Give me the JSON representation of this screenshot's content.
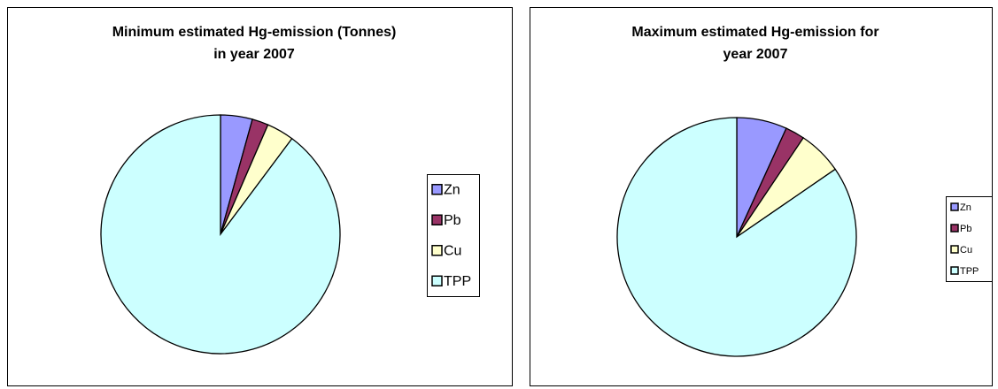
{
  "chart_data": [
    {
      "type": "pie",
      "title": [
        "Minimum estimated Hg-emission (Tonnes)",
        "in year 2007"
      ],
      "categories": [
        "Zn",
        "Pb",
        "Cu",
        "TPP"
      ],
      "values": [
        4.3,
        2.2,
        3.7,
        89.8
      ],
      "colors": [
        "#9999ff",
        "#993366",
        "#ffffcc",
        "#ccffff"
      ],
      "legend": "right"
    },
    {
      "type": "pie",
      "title": [
        "Maximum estimated Hg-emission for",
        "year 2007"
      ],
      "categories": [
        "Zn",
        "Pb",
        "Cu",
        "TPP"
      ],
      "values": [
        6.8,
        2.6,
        6.0,
        84.6
      ],
      "colors": [
        "#9999ff",
        "#993366",
        "#ffffcc",
        "#ccffff"
      ],
      "legend": "right"
    }
  ]
}
